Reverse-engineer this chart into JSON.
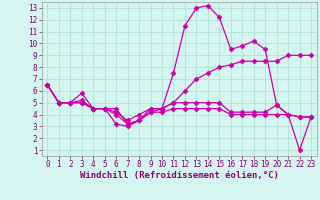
{
  "xlabel": "Windchill (Refroidissement éolien,°C)",
  "bg_color": "#d5f5f0",
  "grid_color": "#aaddcc",
  "line_color": "#cc00aa",
  "xlim": [
    -0.5,
    23.5
  ],
  "ylim": [
    0.5,
    13.5
  ],
  "xticks": [
    0,
    1,
    2,
    3,
    4,
    5,
    6,
    7,
    8,
    9,
    10,
    11,
    12,
    13,
    14,
    15,
    16,
    17,
    18,
    19,
    20,
    21,
    22,
    23
  ],
  "yticks": [
    1,
    2,
    3,
    4,
    5,
    6,
    7,
    8,
    9,
    10,
    11,
    12,
    13
  ],
  "line1_x": [
    0,
    1,
    2,
    3,
    4,
    5,
    6,
    7,
    8,
    9,
    10,
    11,
    12,
    13,
    14,
    15,
    16,
    17,
    18,
    19,
    20,
    21,
    22,
    23
  ],
  "line1_y": [
    6.5,
    5.0,
    5.0,
    5.8,
    4.5,
    4.5,
    3.2,
    3.0,
    3.5,
    4.5,
    4.5,
    7.5,
    11.5,
    13.0,
    13.2,
    12.2,
    9.5,
    9.8,
    10.2,
    9.5,
    4.8,
    4.0,
    1.0,
    3.8
  ],
  "line2_x": [
    0,
    1,
    2,
    3,
    4,
    5,
    6,
    7,
    8,
    9,
    10,
    11,
    12,
    13,
    14,
    15,
    16,
    17,
    18,
    19,
    20,
    21,
    22,
    23
  ],
  "line2_y": [
    6.5,
    5.0,
    5.0,
    5.2,
    4.5,
    4.5,
    4.2,
    3.5,
    4.0,
    4.5,
    4.5,
    5.0,
    5.0,
    5.0,
    5.0,
    5.0,
    4.2,
    4.2,
    4.2,
    4.2,
    4.8,
    4.0,
    3.8,
    3.8
  ],
  "line3_x": [
    0,
    1,
    2,
    3,
    4,
    5,
    6,
    7,
    8,
    9,
    10,
    11,
    12,
    13,
    14,
    15,
    16,
    17,
    18,
    19,
    20,
    21,
    22,
    23
  ],
  "line3_y": [
    6.5,
    5.0,
    5.0,
    5.0,
    4.5,
    4.5,
    4.5,
    3.2,
    3.5,
    4.2,
    4.5,
    5.0,
    6.0,
    7.0,
    7.5,
    8.0,
    8.2,
    8.5,
    8.5,
    8.5,
    8.5,
    9.0,
    9.0,
    9.0
  ],
  "line4_x": [
    0,
    1,
    2,
    3,
    4,
    5,
    6,
    7,
    8,
    9,
    10,
    11,
    12,
    13,
    14,
    15,
    16,
    17,
    18,
    19,
    20,
    21,
    22,
    23
  ],
  "line4_y": [
    6.5,
    5.0,
    5.0,
    5.0,
    4.5,
    4.5,
    4.0,
    3.2,
    3.5,
    4.2,
    4.2,
    4.5,
    4.5,
    4.5,
    4.5,
    4.5,
    4.0,
    4.0,
    4.0,
    4.0,
    4.0,
    4.0,
    3.8,
    3.8
  ],
  "tick_color": "#880077",
  "xlabel_fontsize": 6.5,
  "tick_fontsize": 5.5,
  "marker_size": 2.5,
  "line_width": 0.9
}
